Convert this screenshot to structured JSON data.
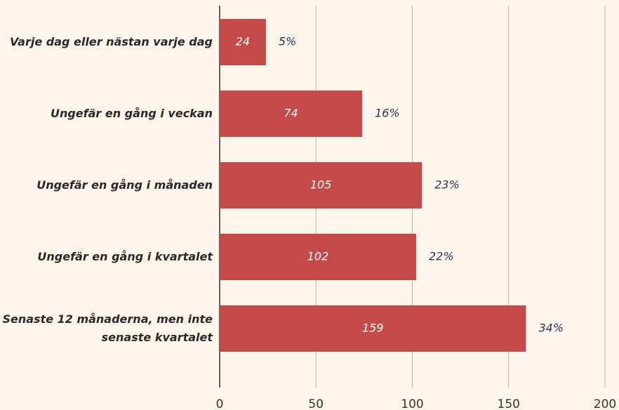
{
  "chart_data": {
    "type": "bar",
    "orientation": "horizontal",
    "categories": [
      "Varje dag eller nästan varje dag",
      "Ungefär en gång i veckan",
      "Ungefär en gång i månaden",
      "Ungefär en gång i kvartalet",
      "Senaste 12 månaderna, men inte senaste kvartalet"
    ],
    "values": [
      24,
      74,
      105,
      102,
      159
    ],
    "share_values": [
      5,
      16,
      23,
      22,
      34
    ],
    "share_labels": [
      "5%",
      "16%",
      "23%",
      "22%",
      "34%"
    ],
    "color": "#c44a4a",
    "xlim": [
      0,
      200
    ],
    "xticks": [
      0,
      50,
      100,
      150,
      200
    ],
    "grid": true
  }
}
